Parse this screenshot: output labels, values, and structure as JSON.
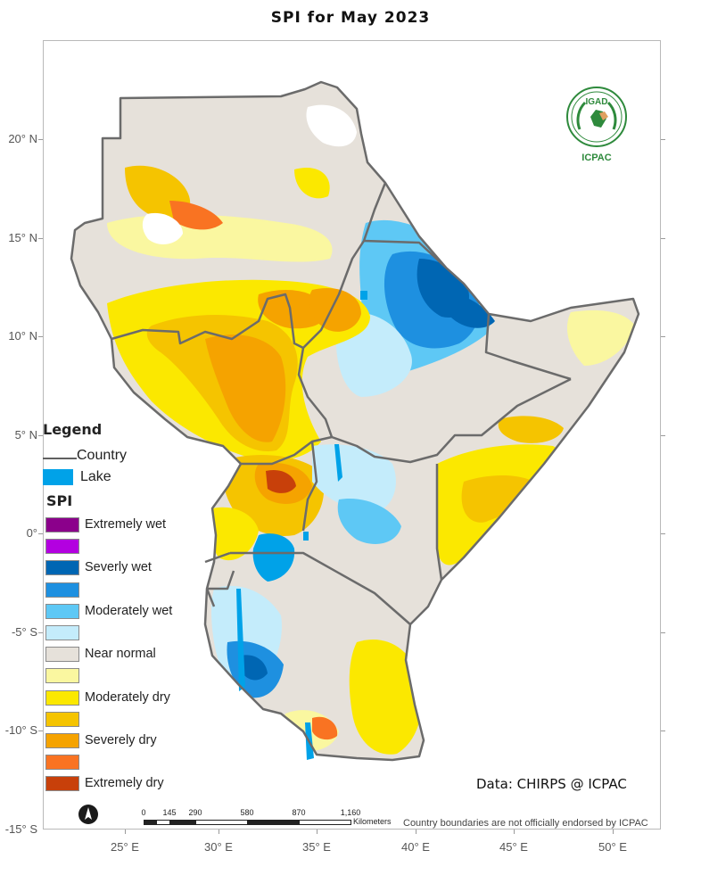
{
  "title": "SPI  for  May 2023",
  "axes": {
    "lat_labels": [
      "20° N",
      "15° N",
      "10° N",
      "5° N",
      "0°",
      "-5° S",
      "-10° S",
      "-15° S"
    ],
    "lon_labels": [
      "25° E",
      "30° E",
      "35° E",
      "40° E",
      "45° E",
      "50° E"
    ]
  },
  "legend": {
    "title": "Legend",
    "country_label": "Country",
    "lake_label": "Lake",
    "spi_title": "SPI",
    "items": [
      {
        "label": "Extremely wet",
        "color": "#8b008b"
      },
      {
        "label": "",
        "color": "#b300e0"
      },
      {
        "label": "Severly wet",
        "color": "#0066b3"
      },
      {
        "label": "",
        "color": "#1e90e0"
      },
      {
        "label": "Moderately wet",
        "color": "#5ec8f5"
      },
      {
        "label": "",
        "color": "#c4ecfb"
      },
      {
        "label": "Near normal",
        "color": "#e6e1da"
      },
      {
        "label": "",
        "color": "#faf7a0"
      },
      {
        "label": "Moderately dry",
        "color": "#fbe800"
      },
      {
        "label": "",
        "color": "#f5c400"
      },
      {
        "label": "Severely dry",
        "color": "#f5a300"
      },
      {
        "label": "",
        "color": "#f97322"
      },
      {
        "label": "Extremely dry",
        "color": "#c8400a"
      }
    ]
  },
  "credit": "Data: CHIRPS @ ICPAC",
  "scalebar": {
    "ticks": [
      "0",
      "145",
      "290",
      "580",
      "870",
      "1,160"
    ],
    "units": "Kilometers"
  },
  "disclaimer": "Country boundaries are not officially endorsed by ICPAC",
  "logo": {
    "top_text": "IGAD",
    "bottom_text": "ICPAC"
  }
}
